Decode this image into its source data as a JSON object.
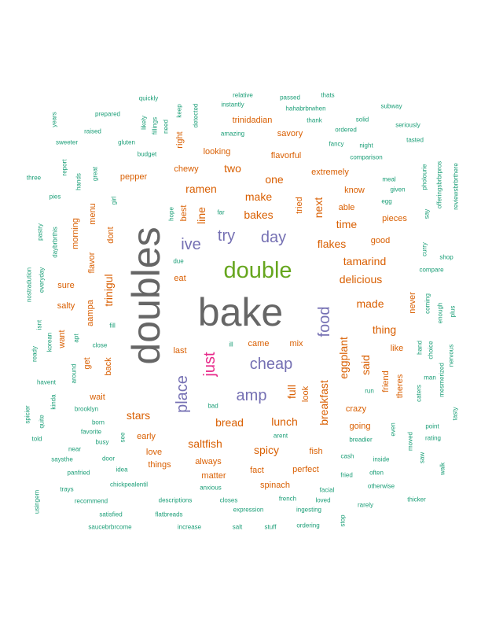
{
  "chart_data": {
    "type": "wordcloud",
    "colors": {
      "teal": "#1b9e77",
      "orange": "#d95f02",
      "purple": "#7570b3",
      "magenta": "#e7298a",
      "green": "#66a61e",
      "gray": "#666666"
    },
    "words": [
      {
        "text": "bake",
        "tier": 1,
        "color": "gray"
      },
      {
        "text": "doubles",
        "tier": 1,
        "color": "gray"
      },
      {
        "text": "double",
        "tier": 2,
        "color": "green"
      },
      {
        "text": "cheap",
        "tier": 3,
        "color": "purple"
      },
      {
        "text": "just",
        "tier": 3,
        "color": "magenta"
      },
      {
        "text": "try",
        "tier": 3,
        "color": "purple"
      },
      {
        "text": "day",
        "tier": 3,
        "color": "purple"
      },
      {
        "text": "place",
        "tier": 3,
        "color": "purple"
      },
      {
        "text": "amp",
        "tier": 3,
        "color": "purple"
      },
      {
        "text": "ive",
        "tier": 3,
        "color": "purple"
      },
      {
        "text": "food",
        "tier": 3,
        "color": "purple"
      },
      {
        "text": "two",
        "tier": 4,
        "color": "orange"
      },
      {
        "text": "ramen",
        "tier": 4,
        "color": "orange"
      },
      {
        "text": "make",
        "tier": 4,
        "color": "orange"
      },
      {
        "text": "bakes",
        "tier": 4,
        "color": "orange"
      },
      {
        "text": "one",
        "tier": 4,
        "color": "orange"
      },
      {
        "text": "line",
        "tier": 4,
        "color": "orange"
      },
      {
        "text": "flakes",
        "tier": 4,
        "color": "orange"
      },
      {
        "text": "tamarind",
        "tier": 4,
        "color": "orange"
      },
      {
        "text": "delicious",
        "tier": 4,
        "color": "orange"
      },
      {
        "text": "made",
        "tier": 4,
        "color": "orange"
      },
      {
        "text": "thing",
        "tier": 4,
        "color": "orange"
      },
      {
        "text": "eggplant",
        "tier": 4,
        "color": "orange"
      },
      {
        "text": "breakfast",
        "tier": 4,
        "color": "orange"
      },
      {
        "text": "bread",
        "tier": 4,
        "color": "orange"
      },
      {
        "text": "lunch",
        "tier": 4,
        "color": "orange"
      },
      {
        "text": "spicy",
        "tier": 4,
        "color": "orange"
      },
      {
        "text": "saltfish",
        "tier": 4,
        "color": "orange"
      },
      {
        "text": "stars",
        "tier": 4,
        "color": "orange"
      },
      {
        "text": "trinigul",
        "tier": 4,
        "color": "orange"
      },
      {
        "text": "next",
        "tier": 4,
        "color": "orange"
      },
      {
        "text": "time",
        "tier": 4,
        "color": "orange"
      },
      {
        "text": "full",
        "tier": 4,
        "color": "orange"
      },
      {
        "text": "said",
        "tier": 4,
        "color": "orange"
      },
      {
        "text": "flavorful",
        "tier": 5,
        "color": "orange"
      },
      {
        "text": "extremely",
        "tier": 5,
        "color": "orange"
      },
      {
        "text": "trinidadian",
        "tier": 5,
        "color": "orange"
      },
      {
        "text": "savory",
        "tier": 5,
        "color": "orange"
      },
      {
        "text": "looking",
        "tier": 5,
        "color": "orange"
      },
      {
        "text": "chewy",
        "tier": 5,
        "color": "orange"
      },
      {
        "text": "right",
        "tier": 5,
        "color": "orange"
      },
      {
        "text": "pepper",
        "tier": 5,
        "color": "orange"
      },
      {
        "text": "best",
        "tier": 5,
        "color": "orange"
      },
      {
        "text": "know",
        "tier": 5,
        "color": "orange"
      },
      {
        "text": "able",
        "tier": 5,
        "color": "orange"
      },
      {
        "text": "pieces",
        "tier": 5,
        "color": "orange"
      },
      {
        "text": "good",
        "tier": 5,
        "color": "orange"
      },
      {
        "text": "tried",
        "tier": 5,
        "color": "orange"
      },
      {
        "text": "menu",
        "tier": 5,
        "color": "orange"
      },
      {
        "text": "dont",
        "tier": 5,
        "color": "orange"
      },
      {
        "text": "morning",
        "tier": 5,
        "color": "orange"
      },
      {
        "text": "flavor",
        "tier": 5,
        "color": "orange"
      },
      {
        "text": "sure",
        "tier": 5,
        "color": "orange"
      },
      {
        "text": "salty",
        "tier": 5,
        "color": "orange"
      },
      {
        "text": "aampa",
        "tier": 5,
        "color": "orange"
      },
      {
        "text": "want",
        "tier": 5,
        "color": "orange"
      },
      {
        "text": "get",
        "tier": 5,
        "color": "orange"
      },
      {
        "text": "back",
        "tier": 5,
        "color": "orange"
      },
      {
        "text": "wait",
        "tier": 5,
        "color": "orange"
      },
      {
        "text": "eat",
        "tier": 5,
        "color": "orange"
      },
      {
        "text": "last",
        "tier": 5,
        "color": "orange"
      },
      {
        "text": "came",
        "tier": 5,
        "color": "orange"
      },
      {
        "text": "mix",
        "tier": 5,
        "color": "orange"
      },
      {
        "text": "never",
        "tier": 5,
        "color": "orange"
      },
      {
        "text": "like",
        "tier": 5,
        "color": "orange"
      },
      {
        "text": "friend",
        "tier": 5,
        "color": "orange"
      },
      {
        "text": "theres",
        "tier": 5,
        "color": "orange"
      },
      {
        "text": "look",
        "tier": 5,
        "color": "orange"
      },
      {
        "text": "crazy",
        "tier": 5,
        "color": "orange"
      },
      {
        "text": "going",
        "tier": 5,
        "color": "orange"
      },
      {
        "text": "early",
        "tier": 5,
        "color": "orange"
      },
      {
        "text": "love",
        "tier": 5,
        "color": "orange"
      },
      {
        "text": "things",
        "tier": 5,
        "color": "orange"
      },
      {
        "text": "always",
        "tier": 5,
        "color": "orange"
      },
      {
        "text": "matter",
        "tier": 5,
        "color": "orange"
      },
      {
        "text": "fact",
        "tier": 5,
        "color": "orange"
      },
      {
        "text": "perfect",
        "tier": 5,
        "color": "orange"
      },
      {
        "text": "fish",
        "tier": 5,
        "color": "orange"
      },
      {
        "text": "spinach",
        "tier": 5,
        "color": "orange"
      },
      {
        "text": "relative",
        "tier": 6,
        "color": "teal"
      },
      {
        "text": "thats",
        "tier": 6,
        "color": "teal"
      },
      {
        "text": "quickly",
        "tier": 6,
        "color": "teal"
      },
      {
        "text": "passed",
        "tier": 6,
        "color": "teal"
      },
      {
        "text": "instantly",
        "tier": 6,
        "color": "teal"
      },
      {
        "text": "hahabrbrwhen",
        "tier": 6,
        "color": "teal"
      },
      {
        "text": "subway",
        "tier": 6,
        "color": "teal"
      },
      {
        "text": "prepared",
        "tier": 6,
        "color": "teal"
      },
      {
        "text": "keep",
        "tier": 6,
        "color": "teal"
      },
      {
        "text": "detected",
        "tier": 6,
        "color": "teal"
      },
      {
        "text": "years",
        "tier": 6,
        "color": "teal"
      },
      {
        "text": "likely",
        "tier": 6,
        "color": "teal"
      },
      {
        "text": "fillings",
        "tier": 6,
        "color": "teal"
      },
      {
        "text": "need",
        "tier": 6,
        "color": "teal"
      },
      {
        "text": "thank",
        "tier": 6,
        "color": "teal"
      },
      {
        "text": "solid",
        "tier": 6,
        "color": "teal"
      },
      {
        "text": "seriously",
        "tier": 6,
        "color": "teal"
      },
      {
        "text": "raised",
        "tier": 6,
        "color": "teal"
      },
      {
        "text": "amazing",
        "tier": 6,
        "color": "teal"
      },
      {
        "text": "ordered",
        "tier": 6,
        "color": "teal"
      },
      {
        "text": "sweeter",
        "tier": 6,
        "color": "teal"
      },
      {
        "text": "gluten",
        "tier": 6,
        "color": "teal"
      },
      {
        "text": "fancy",
        "tier": 6,
        "color": "teal"
      },
      {
        "text": "night",
        "tier": 6,
        "color": "teal"
      },
      {
        "text": "tasted",
        "tier": 6,
        "color": "teal"
      },
      {
        "text": "budget",
        "tier": 6,
        "color": "teal"
      },
      {
        "text": "comparison",
        "tier": 6,
        "color": "teal"
      },
      {
        "text": "report",
        "tier": 6,
        "color": "teal"
      },
      {
        "text": "three",
        "tier": 6,
        "color": "teal"
      },
      {
        "text": "hands",
        "tier": 6,
        "color": "teal"
      },
      {
        "text": "great",
        "tier": 6,
        "color": "teal"
      },
      {
        "text": "meal",
        "tier": 6,
        "color": "teal"
      },
      {
        "text": "pholourie",
        "tier": 6,
        "color": "teal"
      },
      {
        "text": "offeringsbrbrpros",
        "tier": 6,
        "color": "teal"
      },
      {
        "text": "reviewsbrbrthere",
        "tier": 6,
        "color": "teal"
      },
      {
        "text": "given",
        "tier": 6,
        "color": "teal"
      },
      {
        "text": "pies",
        "tier": 6,
        "color": "teal"
      },
      {
        "text": "girl",
        "tier": 6,
        "color": "teal"
      },
      {
        "text": "egg",
        "tier": 6,
        "color": "teal"
      },
      {
        "text": "hope",
        "tier": 6,
        "color": "teal"
      },
      {
        "text": "far",
        "tier": 6,
        "color": "teal"
      },
      {
        "text": "say",
        "tier": 6,
        "color": "teal"
      },
      {
        "text": "pastry",
        "tier": 6,
        "color": "teal"
      },
      {
        "text": "daybrbrthis",
        "tier": 6,
        "color": "teal"
      },
      {
        "text": "curry",
        "tier": 6,
        "color": "teal"
      },
      {
        "text": "shop",
        "tier": 6,
        "color": "teal"
      },
      {
        "text": "due",
        "tier": 6,
        "color": "teal"
      },
      {
        "text": "compare",
        "tier": 6,
        "color": "teal"
      },
      {
        "text": "nostradution",
        "tier": 6,
        "color": "teal"
      },
      {
        "text": "everyday",
        "tier": 6,
        "color": "teal"
      },
      {
        "text": "coming",
        "tier": 6,
        "color": "teal"
      },
      {
        "text": "enough",
        "tier": 6,
        "color": "teal"
      },
      {
        "text": "plus",
        "tier": 6,
        "color": "teal"
      },
      {
        "text": "isnt",
        "tier": 6,
        "color": "teal"
      },
      {
        "text": "fill",
        "tier": 6,
        "color": "teal"
      },
      {
        "text": "apt",
        "tier": 6,
        "color": "teal"
      },
      {
        "text": "korean",
        "tier": 6,
        "color": "teal"
      },
      {
        "text": "close",
        "tier": 6,
        "color": "teal"
      },
      {
        "text": "ill",
        "tier": 6,
        "color": "teal"
      },
      {
        "text": "hand",
        "tier": 6,
        "color": "teal"
      },
      {
        "text": "choice",
        "tier": 6,
        "color": "teal"
      },
      {
        "text": "nervous",
        "tier": 6,
        "color": "teal"
      },
      {
        "text": "ready",
        "tier": 6,
        "color": "teal"
      },
      {
        "text": "man",
        "tier": 6,
        "color": "teal"
      },
      {
        "text": "around",
        "tier": 6,
        "color": "teal"
      },
      {
        "text": "mesmerized",
        "tier": 6,
        "color": "teal"
      },
      {
        "text": "havent",
        "tier": 6,
        "color": "teal"
      },
      {
        "text": "run",
        "tier": 6,
        "color": "teal"
      },
      {
        "text": "caters",
        "tier": 6,
        "color": "teal"
      },
      {
        "text": "spicier",
        "tier": 6,
        "color": "teal"
      },
      {
        "text": "kinda",
        "tier": 6,
        "color": "teal"
      },
      {
        "text": "quite",
        "tier": 6,
        "color": "teal"
      },
      {
        "text": "brooklyn",
        "tier": 6,
        "color": "teal"
      },
      {
        "text": "bad",
        "tier": 6,
        "color": "teal"
      },
      {
        "text": "tasty",
        "tier": 6,
        "color": "teal"
      },
      {
        "text": "born",
        "tier": 6,
        "color": "teal"
      },
      {
        "text": "even",
        "tier": 6,
        "color": "teal"
      },
      {
        "text": "point",
        "tier": 6,
        "color": "teal"
      },
      {
        "text": "told",
        "tier": 6,
        "color": "teal"
      },
      {
        "text": "favorite",
        "tier": 6,
        "color": "teal"
      },
      {
        "text": "see",
        "tier": 6,
        "color": "teal"
      },
      {
        "text": "arent",
        "tier": 6,
        "color": "teal"
      },
      {
        "text": "breadier",
        "tier": 6,
        "color": "teal"
      },
      {
        "text": "rating",
        "tier": 6,
        "color": "teal"
      },
      {
        "text": "busy",
        "tier": 6,
        "color": "teal"
      },
      {
        "text": "near",
        "tier": 6,
        "color": "teal"
      },
      {
        "text": "moved",
        "tier": 6,
        "color": "teal"
      },
      {
        "text": "saysthe",
        "tier": 6,
        "color": "teal"
      },
      {
        "text": "door",
        "tier": 6,
        "color": "teal"
      },
      {
        "text": "cash",
        "tier": 6,
        "color": "teal"
      },
      {
        "text": "inside",
        "tier": 6,
        "color": "teal"
      },
      {
        "text": "saw",
        "tier": 6,
        "color": "teal"
      },
      {
        "text": "walk",
        "tier": 6,
        "color": "teal"
      },
      {
        "text": "panfried",
        "tier": 6,
        "color": "teal"
      },
      {
        "text": "idea",
        "tier": 6,
        "color": "teal"
      },
      {
        "text": "fried",
        "tier": 6,
        "color": "teal"
      },
      {
        "text": "often",
        "tier": 6,
        "color": "teal"
      },
      {
        "text": "chickpealentil",
        "tier": 6,
        "color": "teal"
      },
      {
        "text": "anxious",
        "tier": 6,
        "color": "teal"
      },
      {
        "text": "otherwise",
        "tier": 6,
        "color": "teal"
      },
      {
        "text": "trays",
        "tier": 6,
        "color": "teal"
      },
      {
        "text": "facial",
        "tier": 6,
        "color": "teal"
      },
      {
        "text": "usingem",
        "tier": 6,
        "color": "teal"
      },
      {
        "text": "recommend",
        "tier": 6,
        "color": "teal"
      },
      {
        "text": "descriptions",
        "tier": 6,
        "color": "teal"
      },
      {
        "text": "closes",
        "tier": 6,
        "color": "teal"
      },
      {
        "text": "french",
        "tier": 6,
        "color": "teal"
      },
      {
        "text": "loved",
        "tier": 6,
        "color": "teal"
      },
      {
        "text": "thicker",
        "tier": 6,
        "color": "teal"
      },
      {
        "text": "rarely",
        "tier": 6,
        "color": "teal"
      },
      {
        "text": "expression",
        "tier": 6,
        "color": "teal"
      },
      {
        "text": "ingesting",
        "tier": 6,
        "color": "teal"
      },
      {
        "text": "satisfied",
        "tier": 6,
        "color": "teal"
      },
      {
        "text": "flatbreads",
        "tier": 6,
        "color": "teal"
      },
      {
        "text": "stop",
        "tier": 6,
        "color": "teal"
      },
      {
        "text": "saucebrbrcome",
        "tier": 6,
        "color": "teal"
      },
      {
        "text": "increase",
        "tier": 6,
        "color": "teal"
      },
      {
        "text": "salt",
        "tier": 6,
        "color": "teal"
      },
      {
        "text": "stuff",
        "tier": 6,
        "color": "teal"
      },
      {
        "text": "ordering",
        "tier": 6,
        "color": "teal"
      }
    ]
  }
}
